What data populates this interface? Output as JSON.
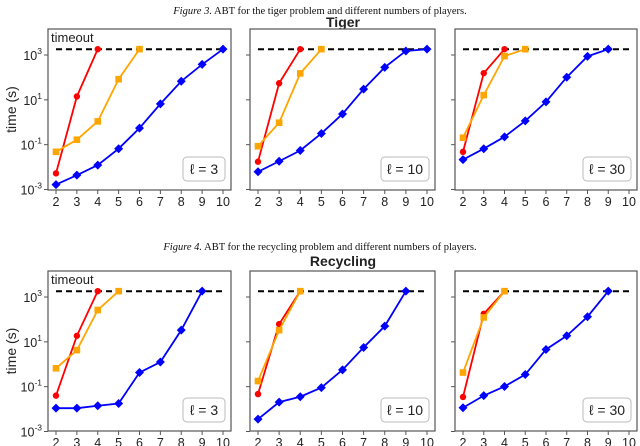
{
  "chart_data": [
    {
      "figure_label": "Figure 3.",
      "caption": "ABT for the tiger problem and different numbers of players.",
      "title": "Tiger",
      "type": "line",
      "ylabel": "time (s)",
      "yscale": "log",
      "ylim_log10": [
        -3,
        4
      ],
      "yticks": [
        "10",
        "10",
        "10",
        "10"
      ],
      "ytick_exponents": [
        "3",
        "1",
        "-1",
        "-3"
      ],
      "ytick_values_log10": [
        3,
        1,
        -1,
        -3
      ],
      "xticks": [
        "2",
        "3",
        "4",
        "5",
        "6",
        "7",
        "8",
        "9",
        "10"
      ],
      "timeout_label": "timeout",
      "timeout_seconds": 1800,
      "panels": [
        {
          "legend": "ℓ = 3",
          "series": [
            {
              "color": "#ff0000",
              "marker": "circle",
              "x": [
                2,
                3,
                4
              ],
              "log10_time": [
                -2.28,
                1.15,
                3.26
              ]
            },
            {
              "color": "#ffa500",
              "marker": "square",
              "x": [
                2,
                3,
                4,
                5,
                6
              ],
              "log10_time": [
                -1.32,
                -0.78,
                0.04,
                1.92,
                3.26
              ]
            },
            {
              "color": "#0000ff",
              "marker": "diamond",
              "x": [
                2,
                3,
                4,
                5,
                6,
                7,
                8,
                9,
                10
              ],
              "log10_time": [
                -2.78,
                -2.36,
                -1.91,
                -1.18,
                -0.26,
                0.82,
                1.83,
                2.58,
                3.26
              ]
            }
          ]
        },
        {
          "legend": "ℓ = 10",
          "series": [
            {
              "color": "#ff0000",
              "marker": "circle",
              "x": [
                2,
                3,
                4
              ],
              "log10_time": [
                -1.76,
                1.74,
                3.26
              ]
            },
            {
              "color": "#ffa500",
              "marker": "square",
              "x": [
                2,
                3,
                4,
                5
              ],
              "log10_time": [
                -1.07,
                -0.02,
                2.18,
                3.26
              ]
            },
            {
              "color": "#0000ff",
              "marker": "diamond",
              "x": [
                2,
                3,
                4,
                5,
                6,
                7,
                8,
                9,
                10
              ],
              "log10_time": [
                -2.21,
                -1.74,
                -1.26,
                -0.5,
                0.37,
                1.48,
                2.45,
                3.18,
                3.26
              ]
            }
          ]
        },
        {
          "legend": "ℓ = 30",
          "series": [
            {
              "color": "#ff0000",
              "marker": "circle",
              "x": [
                2,
                3,
                4
              ],
              "log10_time": [
                -1.32,
                2.19,
                3.26
              ]
            },
            {
              "color": "#ffa500",
              "marker": "square",
              "x": [
                2,
                3,
                4,
                5
              ],
              "log10_time": [
                -0.69,
                1.21,
                2.95,
                3.26
              ]
            },
            {
              "color": "#0000ff",
              "marker": "diamond",
              "x": [
                2,
                3,
                4,
                5,
                6,
                7,
                8,
                9
              ],
              "log10_time": [
                -1.67,
                -1.18,
                -0.65,
                0.06,
                0.91,
                2.01,
                2.94,
                3.26
              ]
            }
          ]
        }
      ]
    },
    {
      "figure_label": "Figure 4.",
      "caption": "ABT for the recycling problem and different numbers of players.",
      "title": "Recycling",
      "type": "line",
      "ylabel": "time (s)",
      "yscale": "log",
      "ylim_log10": [
        -3,
        4
      ],
      "yticks": [
        "10",
        "10",
        "10",
        "10"
      ],
      "ytick_exponents": [
        "3",
        "1",
        "-1",
        "-3"
      ],
      "ytick_values_log10": [
        3,
        1,
        -1,
        -3
      ],
      "xticks": [
        "2",
        "3",
        "4",
        "5",
        "6",
        "7",
        "8",
        "9",
        "10"
      ],
      "timeout_label": "timeout",
      "timeout_seconds": 1800,
      "panels": [
        {
          "legend": "ℓ = 3",
          "series": [
            {
              "color": "#ff0000",
              "marker": "circle",
              "x": [
                2,
                3,
                4
              ],
              "log10_time": [
                -1.4,
                1.27,
                3.26
              ]
            },
            {
              "color": "#ffa500",
              "marker": "square",
              "x": [
                2,
                3,
                4,
                5
              ],
              "log10_time": [
                -0.18,
                0.63,
                2.42,
                3.26
              ]
            },
            {
              "color": "#0000ff",
              "marker": "diamond",
              "x": [
                2,
                3,
                4,
                5,
                6,
                7,
                8,
                9
              ],
              "log10_time": [
                -1.96,
                -1.96,
                -1.85,
                -1.75,
                -0.37,
                0.1,
                1.52,
                3.26
              ]
            }
          ]
        },
        {
          "legend": "ℓ = 10",
          "series": [
            {
              "color": "#ff0000",
              "marker": "circle",
              "x": [
                2,
                3,
                4
              ],
              "log10_time": [
                -1.33,
                1.79,
                3.26
              ]
            },
            {
              "color": "#ffa500",
              "marker": "square",
              "x": [
                2,
                3,
                4
              ],
              "log10_time": [
                -0.75,
                1.52,
                3.26
              ]
            },
            {
              "color": "#0000ff",
              "marker": "diamond",
              "x": [
                2,
                3,
                4,
                5,
                6,
                7,
                8,
                9
              ],
              "log10_time": [
                -2.45,
                -1.69,
                -1.45,
                -1.04,
                -0.25,
                0.75,
                1.7,
                3.26
              ]
            }
          ]
        },
        {
          "legend": "ℓ = 30",
          "series": [
            {
              "color": "#ff0000",
              "marker": "circle",
              "x": [
                2,
                3,
                4
              ],
              "log10_time": [
                -1.46,
                2.25,
                3.26
              ]
            },
            {
              "color": "#ffa500",
              "marker": "square",
              "x": [
                2,
                3,
                4
              ],
              "log10_time": [
                -0.37,
                2.09,
                3.26
              ]
            },
            {
              "color": "#0000ff",
              "marker": "diamond",
              "x": [
                2,
                3,
                4,
                5,
                6,
                7,
                8,
                9
              ],
              "log10_time": [
                -1.94,
                -1.4,
                -0.99,
                -0.46,
                0.66,
                1.27,
                2.12,
                3.26
              ]
            }
          ]
        }
      ]
    }
  ]
}
